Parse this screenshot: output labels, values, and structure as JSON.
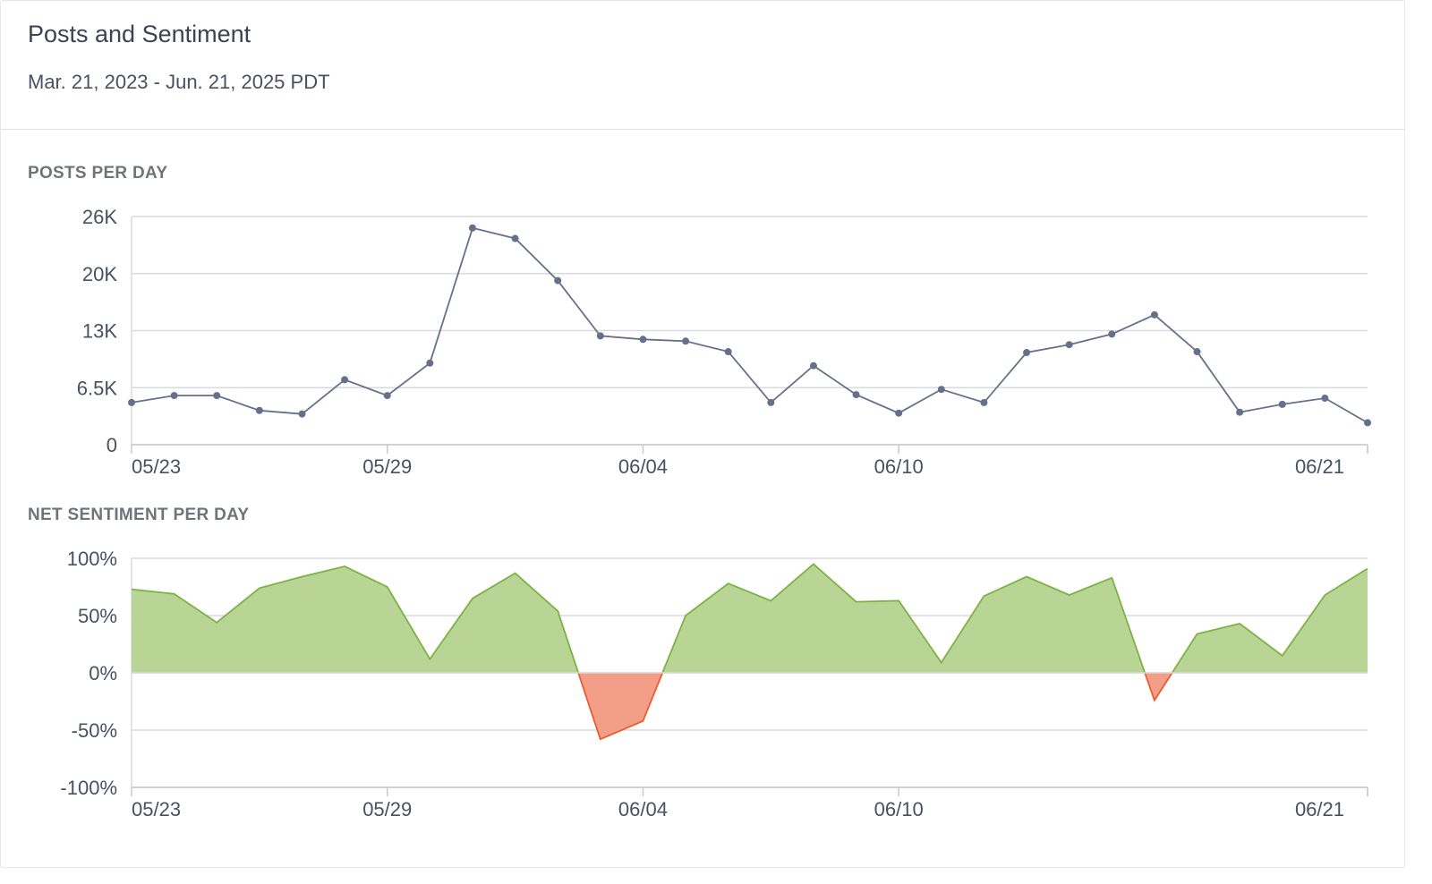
{
  "header": {
    "title": "Posts and Sentiment",
    "date_range": "Mar. 21, 2023 - Jun. 21, 2025 PDT"
  },
  "colors": {
    "line": "#65708a",
    "positive_fill": "#b9d595",
    "positive_stroke": "#7cb342",
    "negative_fill": "#f39f87",
    "negative_stroke": "#ee5a2f",
    "grid": "#d9dadd"
  },
  "chart_data": [
    {
      "type": "line",
      "title": "POSTS PER DAY",
      "x": [
        "05/23",
        "05/24",
        "05/25",
        "05/26",
        "05/27",
        "05/28",
        "05/29",
        "05/30",
        "05/31",
        "06/01",
        "06/02",
        "06/03",
        "06/04",
        "06/05",
        "06/06",
        "06/07",
        "06/08",
        "06/09",
        "06/10",
        "06/11",
        "06/12",
        "06/13",
        "06/14",
        "06/15",
        "06/16",
        "06/17",
        "06/18",
        "06/19",
        "06/20",
        "06/21"
      ],
      "series": [
        {
          "values": [
            4800,
            5600,
            5600,
            3900,
            3500,
            7400,
            5600,
            9300,
            24700,
            23500,
            18700,
            12400,
            12000,
            11800,
            10600,
            4800,
            9000,
            5700,
            3600,
            6300,
            4800,
            10500,
            11400,
            12600,
            14800,
            10600,
            3700,
            4600,
            5300,
            2500
          ]
        }
      ],
      "x_tick_labels": [
        "05/23",
        "05/29",
        "06/04",
        "06/10",
        "06/21"
      ],
      "y_tick_labels": [
        "0",
        "6.5K",
        "13K",
        "20K",
        "26K"
      ],
      "ylim": [
        0,
        26000
      ],
      "grid": true
    },
    {
      "type": "area",
      "title": "NET SENTIMENT PER DAY",
      "x": [
        "05/23",
        "05/24",
        "05/25",
        "05/26",
        "05/27",
        "05/28",
        "05/29",
        "05/30",
        "05/31",
        "06/01",
        "06/02",
        "06/03",
        "06/04",
        "06/05",
        "06/06",
        "06/07",
        "06/08",
        "06/09",
        "06/10",
        "06/11",
        "06/12",
        "06/13",
        "06/14",
        "06/15",
        "06/16",
        "06/17",
        "06/18",
        "06/19",
        "06/20",
        "06/21"
      ],
      "series": [
        {
          "values": [
            73,
            69,
            44,
            74,
            84,
            93,
            75,
            12,
            65,
            87,
            54,
            -58,
            -42,
            50,
            78,
            63,
            95,
            62,
            63,
            9,
            67,
            84,
            68,
            83,
            -24,
            34,
            43,
            15,
            68,
            91
          ]
        }
      ],
      "x_tick_labels": [
        "05/23",
        "05/29",
        "06/04",
        "06/10",
        "06/21"
      ],
      "y_tick_labels": [
        "-100%",
        "-50%",
        "0%",
        "50%",
        "100%"
      ],
      "ylim": [
        -100,
        100
      ],
      "grid": true
    }
  ]
}
